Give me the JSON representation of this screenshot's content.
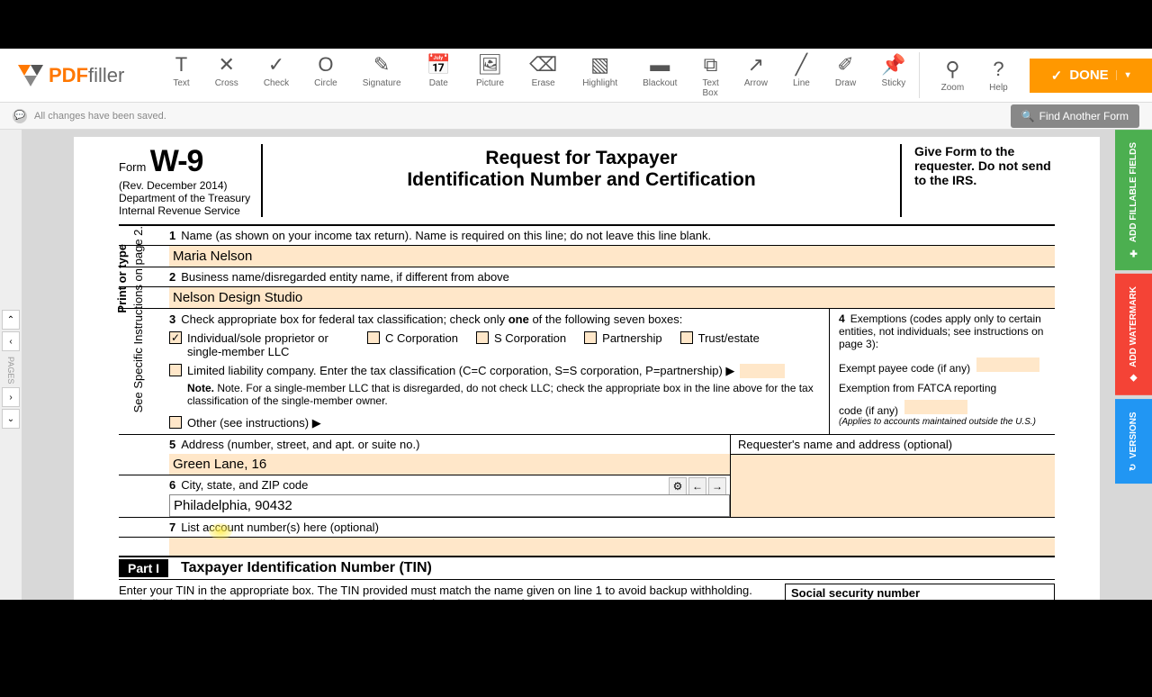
{
  "logo": {
    "pdf": "PDF",
    "filler": "filler"
  },
  "tools": [
    {
      "label": "Text",
      "icon": "T"
    },
    {
      "label": "Cross",
      "icon": "✕"
    },
    {
      "label": "Check",
      "icon": "✓"
    },
    {
      "label": "Circle",
      "icon": "O"
    },
    {
      "label": "Signature",
      "icon": "✎"
    },
    {
      "label": "Date",
      "icon": "📅"
    },
    {
      "label": "Picture",
      "icon": "🖼"
    },
    {
      "label": "Erase",
      "icon": "⌫"
    },
    {
      "label": "Highlight",
      "icon": "▧"
    },
    {
      "label": "Blackout",
      "icon": "▬"
    },
    {
      "label": "Text Box",
      "icon": "⧉"
    },
    {
      "label": "Arrow",
      "icon": "↗"
    },
    {
      "label": "Line",
      "icon": "╱"
    },
    {
      "label": "Draw",
      "icon": "✐"
    },
    {
      "label": "Sticky",
      "icon": "📌"
    }
  ],
  "right_tools": [
    {
      "label": "Zoom",
      "icon": "⚲"
    },
    {
      "label": "Help",
      "icon": "?"
    }
  ],
  "done": "DONE",
  "status": "All changes have been saved.",
  "find_form": "Find Another Form",
  "pages_label": "PAGES",
  "side_tabs": {
    "fillable": "ADD FILLABLE FIELDS",
    "watermark": "ADD WATERMARK",
    "versions": "VERSIONS"
  },
  "form": {
    "form_word": "Form",
    "code": "W-9",
    "rev": "(Rev. December 2014)",
    "dept1": "Department of the Treasury",
    "dept2": "Internal Revenue Service",
    "title1": "Request for Taxpayer",
    "title2": "Identification Number and Certification",
    "give": "Give Form to the requester. Do not send to the IRS.",
    "vert1": "Print or type",
    "vert2": "See Specific Instructions on page 2.",
    "line1_label": "Name (as shown on your income tax return). Name is required on this line; do not leave this line blank.",
    "line1_value": "Maria Nelson",
    "line2_label": "Business name/disregarded entity name, if different from above",
    "line2_value": "Nelson Design Studio",
    "line3_label": "Check appropriate box for federal tax classification; check only ",
    "line3_one": "one",
    "line3_label2": " of the following seven boxes:",
    "chk_individual": "Individual/sole proprietor or single-member LLC",
    "chk_ccorp": "C Corporation",
    "chk_scorp": "S Corporation",
    "chk_partner": "Partnership",
    "chk_trust": "Trust/estate",
    "chk_llc": "Limited liability company. Enter the tax classification (C=C corporation, S=S corporation, P=partnership) ▶",
    "llc_note": "Note. For a single-member LLC that is disregarded, do not check LLC; check the appropriate box in the line above for the tax classification of the single-member owner.",
    "chk_other": "Other (see instructions) ▶",
    "line4_label": "Exemptions (codes apply only to certain entities, not individuals; see instructions on page 3):",
    "exempt1": "Exempt payee code (if any)",
    "exempt2": "Exemption from FATCA reporting",
    "exempt3": "code (if any)",
    "fatca_note": "(Applies to accounts maintained outside the U.S.)",
    "line5_label": "Address (number, street, and apt. or suite no.)",
    "line5_value": "Green Lane, 16",
    "line6_label": "City, state, and ZIP code",
    "line6_value": "Philadelphia, 90432",
    "requester": "Requester's name and address (optional)",
    "line7_label": "List account number(s) here (optional)",
    "part1": "Part I",
    "part1_title": "Taxpayer Identification Number (TIN)",
    "tin_text": "Enter your TIN in the appropriate box. The TIN provided must match the name given on line 1 to avoid backup withholding. For individuals, this is generally your social security number (SSN). However, for a",
    "ssn_label": "Social security number"
  }
}
